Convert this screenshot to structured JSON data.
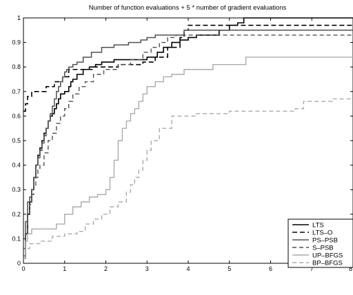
{
  "chart_data": {
    "type": "line",
    "title": "Number of function evaluations + 5 * number of gradient evaluations",
    "xlabel": "",
    "ylabel": "",
    "xlim": [
      0,
      8
    ],
    "ylim": [
      0,
      1
    ],
    "xticks": [
      "0",
      "1",
      "2",
      "3",
      "4",
      "5",
      "6",
      "7",
      "8"
    ],
    "yticks": [
      "0",
      "0.1",
      "0.2",
      "0.3",
      "0.4",
      "0.5",
      "0.6",
      "0.7",
      "0.8",
      "0.9",
      "1"
    ],
    "grid": false,
    "legend_position": "bottom-right",
    "series": [
      {
        "name": "LTS",
        "color": "#000000",
        "dash": "solid",
        "width": 1.6,
        "x": [
          0,
          0.05,
          0.1,
          0.15,
          0.2,
          0.25,
          0.3,
          0.35,
          0.4,
          0.45,
          0.5,
          0.55,
          0.6,
          0.65,
          0.7,
          0.75,
          0.8,
          0.85,
          0.9,
          1.0,
          1.1,
          1.15,
          1.2,
          1.3,
          1.45,
          1.6,
          1.75,
          1.9,
          2.0,
          2.2,
          2.5,
          2.8,
          3.0,
          3.25,
          3.4,
          3.6,
          3.8,
          4.0,
          4.2,
          4.5,
          4.75,
          5.0,
          5.2,
          5.35,
          8.0
        ],
        "y": [
          0.02,
          0.12,
          0.2,
          0.25,
          0.3,
          0.35,
          0.4,
          0.44,
          0.47,
          0.5,
          0.53,
          0.55,
          0.58,
          0.6,
          0.61,
          0.63,
          0.65,
          0.67,
          0.69,
          0.7,
          0.72,
          0.74,
          0.75,
          0.77,
          0.79,
          0.8,
          0.81,
          0.82,
          0.82,
          0.83,
          0.83,
          0.83,
          0.84,
          0.86,
          0.88,
          0.9,
          0.91,
          0.92,
          0.93,
          0.93,
          0.95,
          0.97,
          0.98,
          1.0,
          1.0
        ]
      },
      {
        "name": "LTS–O",
        "color": "#000000",
        "dash": "7,4",
        "width": 1.6,
        "x": [
          0,
          0.05,
          0.1,
          0.2,
          0.35,
          0.55,
          0.75,
          0.95,
          1.1,
          1.3,
          1.5,
          1.7,
          2.0,
          2.3,
          2.6,
          2.9,
          3.2,
          3.5,
          3.8,
          3.9,
          4.0,
          8.0
        ],
        "y": [
          0.62,
          0.65,
          0.68,
          0.7,
          0.7,
          0.72,
          0.74,
          0.76,
          0.79,
          0.79,
          0.79,
          0.8,
          0.8,
          0.81,
          0.81,
          0.82,
          0.84,
          0.88,
          0.92,
          0.95,
          0.97,
          0.97
        ]
      },
      {
        "name": "PS–PSB",
        "color": "#505050",
        "dash": "solid",
        "width": 1.5,
        "x": [
          0,
          0.05,
          0.1,
          0.15,
          0.2,
          0.25,
          0.3,
          0.35,
          0.4,
          0.45,
          0.5,
          0.55,
          0.6,
          0.65,
          0.7,
          0.75,
          0.8,
          0.85,
          0.9,
          0.95,
          1.0,
          1.05,
          1.1,
          1.2,
          1.3,
          1.45,
          1.65,
          1.9,
          2.2,
          2.55,
          2.85,
          3.0,
          3.2,
          3.5,
          3.9,
          4.3,
          8.0
        ],
        "y": [
          0.06,
          0.17,
          0.25,
          0.27,
          0.3,
          0.35,
          0.4,
          0.43,
          0.46,
          0.49,
          0.52,
          0.55,
          0.58,
          0.61,
          0.64,
          0.67,
          0.7,
          0.72,
          0.74,
          0.76,
          0.78,
          0.79,
          0.8,
          0.81,
          0.82,
          0.84,
          0.86,
          0.88,
          0.89,
          0.9,
          0.91,
          0.92,
          0.93,
          0.93,
          0.95,
          0.95,
          0.95
        ]
      },
      {
        "name": "S–PSB",
        "color": "#505050",
        "dash": "6,4",
        "width": 1.4,
        "x": [
          0,
          0.05,
          0.1,
          0.15,
          0.2,
          0.25,
          0.3,
          0.35,
          0.4,
          0.5,
          0.6,
          0.7,
          0.8,
          0.9,
          1.0,
          1.1,
          1.2,
          1.35,
          1.5,
          1.7,
          1.95,
          2.3,
          2.6,
          2.9,
          3.1,
          3.3,
          3.5,
          3.7,
          8.0
        ],
        "y": [
          0.03,
          0.12,
          0.2,
          0.24,
          0.28,
          0.31,
          0.35,
          0.38,
          0.4,
          0.45,
          0.5,
          0.53,
          0.57,
          0.6,
          0.63,
          0.66,
          0.69,
          0.72,
          0.74,
          0.77,
          0.79,
          0.81,
          0.83,
          0.86,
          0.88,
          0.9,
          0.92,
          0.93,
          0.93
        ]
      },
      {
        "name": "UP–BFGS",
        "color": "#aaaaaa",
        "dash": "solid",
        "width": 1.4,
        "x": [
          0,
          0.05,
          0.1,
          0.2,
          0.6,
          0.8,
          1.0,
          1.2,
          1.4,
          1.6,
          1.8,
          2.0,
          2.1,
          2.2,
          2.3,
          2.4,
          2.5,
          2.6,
          2.7,
          2.8,
          2.9,
          3.0,
          3.2,
          3.4,
          3.6,
          3.9,
          4.2,
          4.6,
          5.0,
          5.4,
          8.0
        ],
        "y": [
          0.02,
          0.09,
          0.12,
          0.14,
          0.14,
          0.16,
          0.2,
          0.23,
          0.25,
          0.27,
          0.28,
          0.3,
          0.35,
          0.42,
          0.5,
          0.55,
          0.58,
          0.61,
          0.63,
          0.66,
          0.69,
          0.72,
          0.74,
          0.76,
          0.77,
          0.79,
          0.79,
          0.81,
          0.81,
          0.84,
          0.84
        ]
      },
      {
        "name": "BP–BFGS",
        "color": "#aaaaaa",
        "dash": "6,4",
        "width": 1.4,
        "x": [
          0,
          0.05,
          0.15,
          0.4,
          0.7,
          1.0,
          1.3,
          1.5,
          1.7,
          1.9,
          2.1,
          2.3,
          2.5,
          2.6,
          2.7,
          2.8,
          2.9,
          3.0,
          3.1,
          3.3,
          3.6,
          4.2,
          5.0,
          5.8,
          6.6,
          6.8,
          7.5,
          8.0
        ],
        "y": [
          0.02,
          0.06,
          0.08,
          0.09,
          0.11,
          0.12,
          0.13,
          0.16,
          0.18,
          0.2,
          0.23,
          0.25,
          0.29,
          0.32,
          0.35,
          0.38,
          0.42,
          0.46,
          0.5,
          0.55,
          0.6,
          0.61,
          0.62,
          0.62,
          0.63,
          0.66,
          0.67,
          0.67
        ]
      }
    ]
  }
}
